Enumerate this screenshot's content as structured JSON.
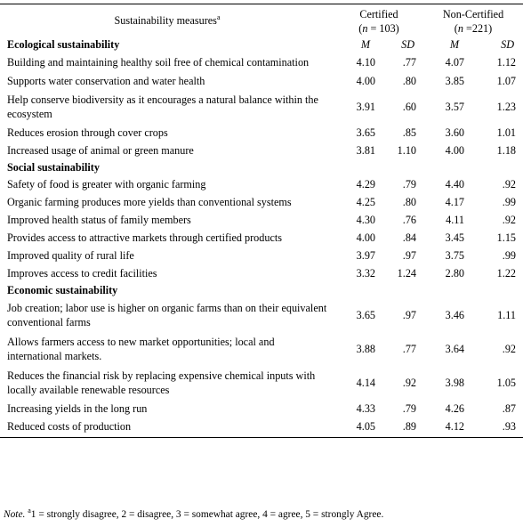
{
  "header": {
    "measures_label": "Sustainability measures",
    "measures_sup": "a",
    "groups": [
      {
        "name": "Certified",
        "n_prefix": "(",
        "n_symbol": "n",
        "n_value": " = 103)"
      },
      {
        "name": "Non-Certified",
        "n_prefix": "(",
        "n_symbol": "n",
        "n_value": " =221)"
      }
    ],
    "col_m": "M",
    "col_sd": "SD"
  },
  "sections": [
    {
      "title": "Ecological sustainability",
      "rows": [
        {
          "measure": "Building and maintaining healthy soil free of chemical contamination",
          "m1": "4.10",
          "sd1": ".77",
          "m2": "4.07",
          "sd2": "1.12"
        },
        {
          "measure": "Supports water conservation and water health",
          "m1": "4.00",
          "sd1": ".80",
          "m2": "3.85",
          "sd2": "1.07"
        },
        {
          "measure": "Help conserve biodiversity as it encourages a natural balance within the ecosystem",
          "m1": "3.91",
          "sd1": ".60",
          "m2": "3.57",
          "sd2": "1.23"
        },
        {
          "measure": "Reduces erosion through cover crops",
          "m1": "3.65",
          "sd1": ".85",
          "m2": "3.60",
          "sd2": "1.01"
        },
        {
          "measure": "Increased usage of animal or green manure",
          "m1": "3.81",
          "sd1": "1.10",
          "m2": "4.00",
          "sd2": "1.18"
        }
      ]
    },
    {
      "title": "Social sustainability",
      "rows": [
        {
          "measure": "Safety of food is greater with organic farming",
          "m1": "4.29",
          "sd1": ".79",
          "m2": "4.40",
          "sd2": ".92"
        },
        {
          "measure": "Organic farming produces more yields than conventional systems",
          "m1": "4.25",
          "sd1": ".80",
          "m2": "4.17",
          "sd2": ".99"
        },
        {
          "measure": "Improved health status of family members",
          "m1": "4.30",
          "sd1": ".76",
          "m2": "4.11",
          "sd2": ".92"
        },
        {
          "measure": "Provides access to attractive markets through certified products",
          "m1": "4.00",
          "sd1": ".84",
          "m2": "3.45",
          "sd2": "1.15"
        },
        {
          "measure": "Improved quality of rural life",
          "m1": "3.97",
          "sd1": ".97",
          "m2": "3.75",
          "sd2": ".99"
        },
        {
          "measure": "Improves access to credit facilities",
          "m1": "3.32",
          "sd1": "1.24",
          "m2": "2.80",
          "sd2": "1.22"
        }
      ]
    },
    {
      "title": "Economic sustainability",
      "rows": [
        {
          "measure": "Job creation; labor use is higher on organic farms than on their equivalent conventional farms",
          "m1": "3.65",
          "sd1": ".97",
          "m2": "3.46",
          "sd2": "1.11"
        },
        {
          "measure": "Allows farmers access to new market opportunities; local and international markets.",
          "m1": "3.88",
          "sd1": ".77",
          "m2": "3.64",
          "sd2": ".92"
        },
        {
          "measure": "Reduces the financial risk by replacing expensive chemical inputs with locally available renewable resources",
          "m1": "4.14",
          "sd1": ".92",
          "m2": "3.98",
          "sd2": "1.05"
        },
        {
          "measure": "Increasing yields in the long run",
          "m1": "4.33",
          "sd1": ".79",
          "m2": "4.26",
          "sd2": ".87"
        },
        {
          "measure": "Reduced costs of production",
          "m1": "4.05",
          "sd1": ".89",
          "m2": "4.12",
          "sd2": ".93"
        }
      ]
    }
  ],
  "note": {
    "label": "Note.",
    "sup": "a",
    "text": "1 = strongly disagree, 2 = disagree, 3 = somewhat agree, 4 = agree, 5 = strongly Agree."
  }
}
